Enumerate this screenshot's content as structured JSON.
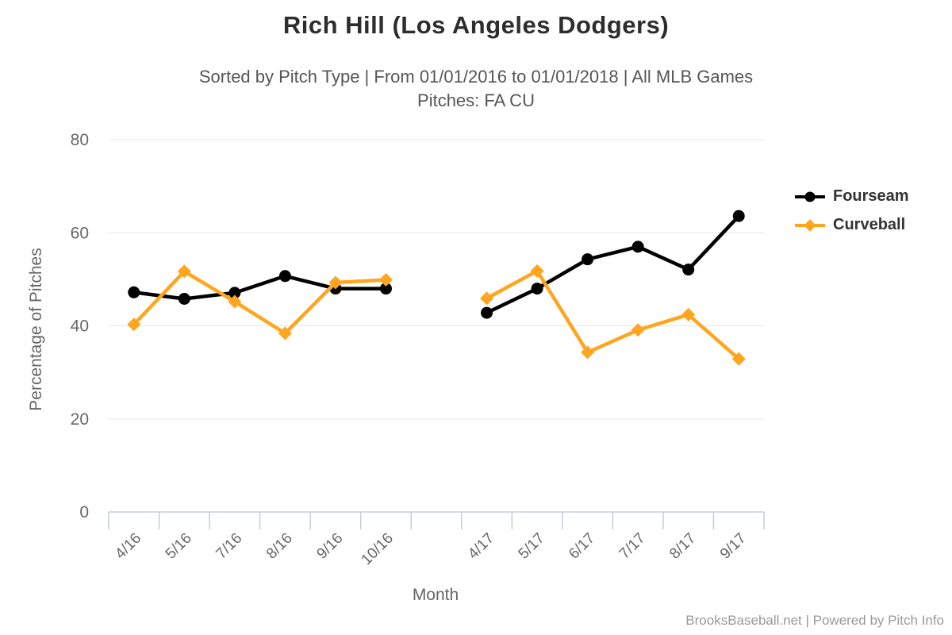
{
  "header": {
    "title": "Rich Hill (Los Angeles Dodgers)",
    "subtitle_line1": "Sorted by Pitch Type | From 01/01/2016 to 01/01/2018 | All MLB Games",
    "subtitle_line2": "Pitches: FA CU"
  },
  "chart_data": {
    "type": "line",
    "title": "Rich Hill (Los Angeles Dodgers)",
    "subtitle": "Sorted by Pitch Type | From 01/01/2016 to 01/01/2018 | All MLB Games",
    "subtitle2": "Pitches: FA CU",
    "xlabel": "Month",
    "ylabel": "Percentage of Pitches",
    "ylim": [
      0,
      80
    ],
    "yticks": [
      0,
      20,
      40,
      60,
      80
    ],
    "grid": "horizontal",
    "legend_position": "right",
    "categories": [
      "4/16",
      "5/16",
      "7/16",
      "8/16",
      "9/16",
      "10/16",
      null,
      "4/17",
      "5/17",
      "6/17",
      "7/17",
      "8/17",
      "9/17"
    ],
    "series": [
      {
        "name": "Fourseam",
        "color": "#000000",
        "marker": "circle",
        "values": [
          47.2,
          45.8,
          47.1,
          50.7,
          48.0,
          48.0,
          null,
          42.8,
          48.0,
          54.3,
          57.0,
          52.1,
          63.6
        ]
      },
      {
        "name": "Curveball",
        "color": "#FFA51E",
        "marker": "diamond",
        "values": [
          40.3,
          51.7,
          45.2,
          38.4,
          49.3,
          49.9,
          null,
          45.9,
          51.8,
          34.3,
          39.1,
          42.4,
          32.9
        ]
      }
    ]
  },
  "footer": {
    "credit": "BrooksBaseball.net | Powered by Pitch Info"
  }
}
